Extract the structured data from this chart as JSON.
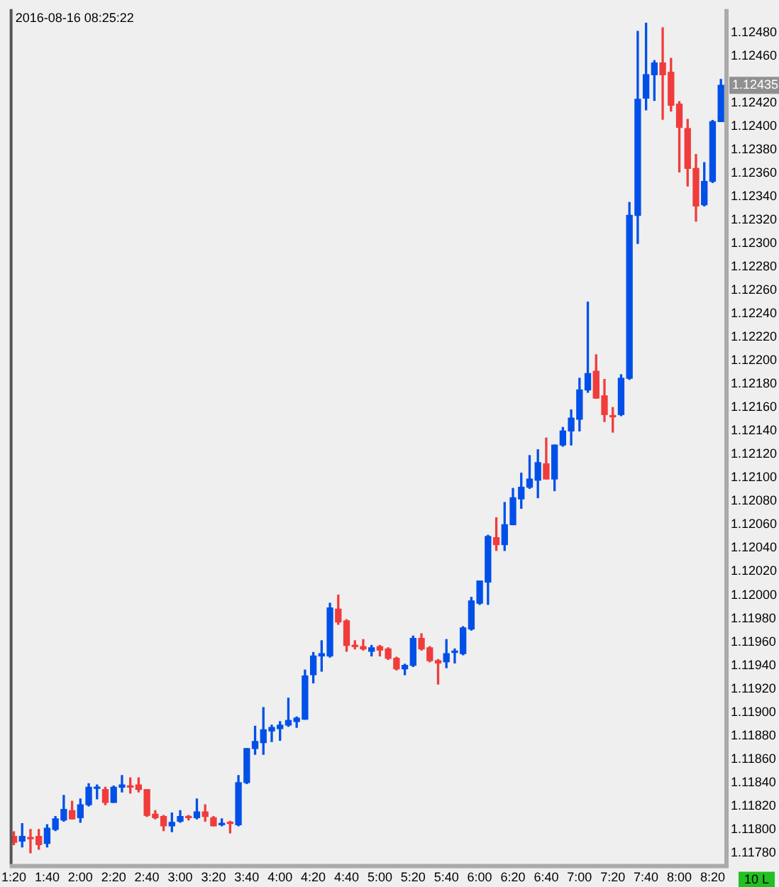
{
  "chart_data": {
    "type": "candlestick",
    "categories": [
      "1:20",
      null,
      null,
      null,
      "1:40",
      null,
      null,
      null,
      "2:00",
      null,
      null,
      null,
      "2:20",
      null,
      null,
      null,
      "2:40",
      null,
      null,
      null,
      "3:00",
      null,
      null,
      null,
      "3:20",
      null,
      null,
      null,
      "3:40",
      null,
      null,
      null,
      "4:00",
      null,
      null,
      null,
      "4:20",
      null,
      null,
      null,
      "4:40",
      null,
      null,
      null,
      "5:00",
      null,
      null,
      null,
      "5:20",
      null,
      null,
      null,
      "5:40",
      null,
      null,
      null,
      "6:00",
      null,
      null,
      null,
      "6:20",
      null,
      null,
      null,
      "6:40",
      null,
      null,
      null,
      "7:00",
      null,
      null,
      null,
      "7:20",
      null,
      null,
      null,
      "7:40",
      null,
      null,
      null,
      "8:00",
      null,
      null,
      null,
      "8:20",
      null
    ],
    "ohlc": [
      [
        1.11794,
        1.11798,
        1.11787,
        1.11789
      ],
      [
        1.1179,
        1.11805,
        1.11785,
        1.11794
      ],
      [
        1.11793,
        1.118,
        1.1178,
        1.11792
      ],
      [
        1.11794,
        1.118,
        1.11783,
        1.11787
      ],
      [
        1.11788,
        1.11804,
        1.11785,
        1.11801
      ],
      [
        1.118,
        1.11811,
        1.11799,
        1.11809
      ],
      [
        1.11808,
        1.11829,
        1.11807,
        1.11817
      ],
      [
        1.11816,
        1.11824,
        1.11809,
        1.11809
      ],
      [
        1.1181,
        1.11826,
        1.11806,
        1.11821
      ],
      [
        1.11821,
        1.11839,
        1.1182,
        1.11836
      ],
      [
        1.11835,
        1.11838,
        1.11826,
        1.11836
      ],
      [
        1.11834,
        1.11836,
        1.11821,
        1.11823
      ],
      [
        1.11823,
        1.11837,
        1.11823,
        1.11836
      ],
      [
        1.11836,
        1.11846,
        1.11832,
        1.11838
      ],
      [
        1.11837,
        1.11844,
        1.11831,
        1.11836
      ],
      [
        1.11838,
        1.11844,
        1.11832,
        1.11834
      ],
      [
        1.11834,
        1.11834,
        1.11811,
        1.11812
      ],
      [
        1.11813,
        1.11816,
        1.11809,
        1.1181
      ],
      [
        1.11811,
        1.11812,
        1.11799,
        1.11803
      ],
      [
        1.11803,
        1.11814,
        1.11798,
        1.11806
      ],
      [
        1.11807,
        1.11816,
        1.11806,
        1.11811
      ],
      [
        1.11811,
        1.11812,
        1.11808,
        1.1181
      ],
      [
        1.1181,
        1.11826,
        1.11809,
        1.11815
      ],
      [
        1.11815,
        1.11821,
        1.11807,
        1.11811
      ],
      [
        1.1181,
        1.11811,
        1.11803,
        1.11803
      ],
      [
        1.11804,
        1.11809,
        1.11803,
        1.11805
      ],
      [
        1.11806,
        1.11807,
        1.11797,
        1.11805
      ],
      [
        1.11804,
        1.11846,
        1.11803,
        1.1184
      ],
      [
        1.1184,
        1.11869,
        1.11839,
        1.11869
      ],
      [
        1.11869,
        1.11888,
        1.11864,
        1.11875
      ],
      [
        1.11874,
        1.11904,
        1.11864,
        1.11885
      ],
      [
        1.11884,
        1.11889,
        1.11875,
        1.11887
      ],
      [
        1.11886,
        1.11892,
        1.11876,
        1.11889
      ],
      [
        1.11889,
        1.11912,
        1.11888,
        1.11893
      ],
      [
        1.11892,
        1.11896,
        1.11887,
        1.11895
      ],
      [
        1.11894,
        1.11936,
        1.11894,
        1.11931
      ],
      [
        1.11932,
        1.11951,
        1.11925,
        1.11948
      ],
      [
        1.11948,
        1.11961,
        1.11935,
        1.1195
      ],
      [
        1.11948,
        1.11993,
        1.11947,
        1.11989
      ],
      [
        1.11988,
        1.12,
        1.11975,
        1.11977
      ],
      [
        1.11978,
        1.11979,
        1.11952,
        1.11957
      ],
      [
        1.11957,
        1.11961,
        1.11954,
        1.11956
      ],
      [
        1.11956,
        1.11962,
        1.11953,
        1.11954
      ],
      [
        1.11952,
        1.11957,
        1.11948,
        1.11955
      ],
      [
        1.11956,
        1.11957,
        1.11948,
        1.11953
      ],
      [
        1.11954,
        1.11955,
        1.11945,
        1.11946
      ],
      [
        1.11946,
        1.11947,
        1.11936,
        1.11937
      ],
      [
        1.11937,
        1.11941,
        1.11932,
        1.1194
      ],
      [
        1.1194,
        1.11965,
        1.11939,
        1.11963
      ],
      [
        1.11963,
        1.11967,
        1.11953,
        1.11954
      ],
      [
        1.11955,
        1.11956,
        1.11943,
        1.11944
      ],
      [
        1.11944,
        1.11945,
        1.11924,
        1.11942
      ],
      [
        1.11943,
        1.11962,
        1.11938,
        1.1195
      ],
      [
        1.11951,
        1.11954,
        1.11942,
        1.11952
      ],
      [
        1.1195,
        1.11973,
        1.11949,
        1.11972
      ],
      [
        1.11971,
        1.11998,
        1.1197,
        1.11995
      ],
      [
        1.11993,
        1.12012,
        1.11992,
        1.12012
      ],
      [
        1.12011,
        1.12051,
        1.11992,
        1.1205
      ],
      [
        1.12049,
        1.12066,
        1.12038,
        1.12043
      ],
      [
        1.12043,
        1.12079,
        1.12038,
        1.1206
      ],
      [
        1.1206,
        1.12091,
        1.1206,
        1.12083
      ],
      [
        1.12082,
        1.12104,
        1.12074,
        1.12092
      ],
      [
        1.12092,
        1.12119,
        1.12091,
        1.12099
      ],
      [
        1.12098,
        1.12124,
        1.12083,
        1.12113
      ],
      [
        1.12112,
        1.12134,
        1.12099,
        1.12099
      ],
      [
        1.12099,
        1.12128,
        1.12089,
        1.12128
      ],
      [
        1.12128,
        1.12143,
        1.12127,
        1.1214
      ],
      [
        1.1214,
        1.12158,
        1.12128,
        1.12151
      ],
      [
        1.1215,
        1.12185,
        1.1214,
        1.12175
      ],
      [
        1.12175,
        1.1225,
        1.12173,
        1.12189
      ],
      [
        1.12191,
        1.12205,
        1.12168,
        1.12168
      ],
      [
        1.1217,
        1.12184,
        1.12148,
        1.12154
      ],
      [
        1.12153,
        1.1216,
        1.12139,
        1.12152
      ],
      [
        1.12154,
        1.12188,
        1.12153,
        1.12185
      ],
      [
        1.12185,
        1.12335,
        1.12184,
        1.12324
      ],
      [
        1.12324,
        1.12481,
        1.123,
        1.12423
      ],
      [
        1.12424,
        1.12488,
        1.12414,
        1.12444
      ],
      [
        1.12444,
        1.12456,
        1.12422,
        1.12454
      ],
      [
        1.12454,
        1.12484,
        1.12406,
        1.12444
      ],
      [
        1.12446,
        1.12458,
        1.12413,
        1.12418
      ],
      [
        1.12419,
        1.12421,
        1.12361,
        1.12399
      ],
      [
        1.12398,
        1.12406,
        1.12349,
        1.12364
      ],
      [
        1.12364,
        1.12376,
        1.12319,
        1.12332
      ],
      [
        1.12333,
        1.12369,
        1.12332,
        1.12353
      ],
      [
        1.12353,
        1.12405,
        1.12352,
        1.12404
      ],
      [
        1.12404,
        1.1244,
        1.12404,
        1.12435
      ]
    ],
    "ylim": [
      1.1177,
      1.125
    ],
    "yticks": [
      {
        "value": 1.1178,
        "label": "1.11780"
      },
      {
        "value": 1.118,
        "label": "1.11800"
      },
      {
        "value": 1.1182,
        "label": "1.11820"
      },
      {
        "value": 1.1184,
        "label": "1.11840"
      },
      {
        "value": 1.1186,
        "label": "1.11860"
      },
      {
        "value": 1.1188,
        "label": "1.11880"
      },
      {
        "value": 1.119,
        "label": "1.11900"
      },
      {
        "value": 1.1192,
        "label": "1.11920"
      },
      {
        "value": 1.1194,
        "label": "1.11940"
      },
      {
        "value": 1.1196,
        "label": "1.11960"
      },
      {
        "value": 1.1198,
        "label": "1.11980"
      },
      {
        "value": 1.12,
        "label": "1.12000"
      },
      {
        "value": 1.1202,
        "label": "1.12020"
      },
      {
        "value": 1.1204,
        "label": "1.12040"
      },
      {
        "value": 1.1206,
        "label": "1.12060"
      },
      {
        "value": 1.1208,
        "label": "1.12080"
      },
      {
        "value": 1.121,
        "label": "1.12100"
      },
      {
        "value": 1.1212,
        "label": "1.12120"
      },
      {
        "value": 1.1214,
        "label": "1.12140"
      },
      {
        "value": 1.1216,
        "label": "1.12160"
      },
      {
        "value": 1.1218,
        "label": "1.12180"
      },
      {
        "value": 1.122,
        "label": "1.12200"
      },
      {
        "value": 1.1222,
        "label": "1.12220"
      },
      {
        "value": 1.1224,
        "label": "1.12240"
      },
      {
        "value": 1.1226,
        "label": "1.12260"
      },
      {
        "value": 1.1228,
        "label": "1.12280"
      },
      {
        "value": 1.123,
        "label": "1.12300"
      },
      {
        "value": 1.1232,
        "label": "1.12320"
      },
      {
        "value": 1.1234,
        "label": "1.12340"
      },
      {
        "value": 1.1236,
        "label": "1.12360"
      },
      {
        "value": 1.1238,
        "label": "1.12380"
      },
      {
        "value": 1.124,
        "label": "1.12400"
      },
      {
        "value": 1.1242,
        "label": "1.12420"
      },
      {
        "value": 1.1246,
        "label": "1.12460"
      },
      {
        "value": 1.1248,
        "label": "1.12480"
      }
    ],
    "colors": [
      "#f03c3c",
      "#0050e8",
      "#f03c3c",
      "#f03c3c",
      "#0050e8",
      "#0050e8",
      "#0050e8",
      "#f03c3c",
      "#0050e8",
      "#0050e8",
      "#0050e8",
      "#f03c3c",
      "#0050e8",
      "#0050e8",
      "#f03c3c",
      "#f03c3c",
      "#f03c3c",
      "#f03c3c",
      "#f03c3c",
      "#0050e8",
      "#0050e8",
      "#f03c3c",
      "#0050e8",
      "#f03c3c",
      "#f03c3c",
      "#0050e8",
      "#f03c3c",
      "#0050e8",
      "#0050e8",
      "#0050e8",
      "#0050e8",
      "#0050e8",
      "#0050e8",
      "#0050e8",
      "#0050e8",
      "#0050e8",
      "#0050e8",
      "#0050e8",
      "#0050e8",
      "#f03c3c",
      "#f03c3c",
      "#f03c3c",
      "#f03c3c",
      "#0050e8",
      "#f03c3c",
      "#f03c3c",
      "#f03c3c",
      "#0050e8",
      "#0050e8",
      "#f03c3c",
      "#f03c3c",
      "#f03c3c",
      "#0050e8",
      "#0050e8",
      "#0050e8",
      "#0050e8",
      "#0050e8",
      "#0050e8",
      "#f03c3c",
      "#0050e8",
      "#0050e8",
      "#0050e8",
      "#0050e8",
      "#0050e8",
      "#f03c3c",
      "#0050e8",
      "#0050e8",
      "#0050e8",
      "#0050e8",
      "#0050e8",
      "#f03c3c",
      "#f03c3c",
      "#f03c3c",
      "#0050e8",
      "#0050e8",
      "#0050e8",
      "#0050e8",
      "#0050e8",
      "#f03c3c",
      "#f03c3c",
      "#f03c3c",
      "#f03c3c",
      "#f03c3c",
      "#0050e8",
      "#0050e8",
      "#0050e8"
    ],
    "annotations": [
      "2016-08-16 08:25:22",
      {
        "text": "1.12435",
        "y": 1.12435
      },
      "10 L"
    ],
    "grid": false,
    "legend": false
  }
}
